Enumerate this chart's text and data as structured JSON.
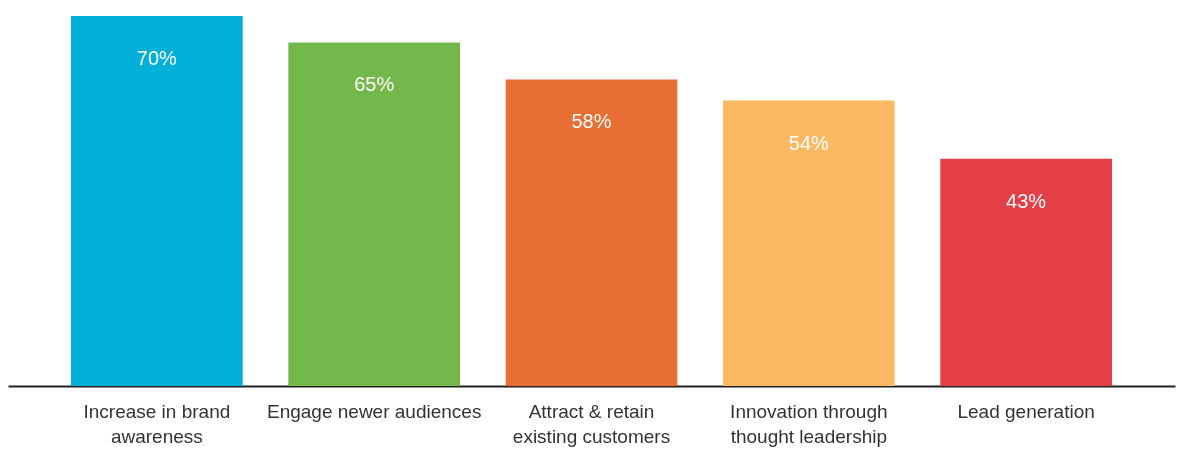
{
  "chart_data": {
    "type": "bar",
    "categories": [
      "Increase in brand awareness",
      "Engage newer audiences",
      "Attract & retain existing customers",
      "Innovation through thought leadership",
      "Lead generation"
    ],
    "values": [
      70,
      65,
      58,
      54,
      43
    ],
    "colors": [
      "#00b0d8",
      "#74b84b",
      "#e86e34",
      "#fbb863",
      "#e43f44"
    ],
    "value_labels": [
      "70%",
      "65%",
      "58%",
      "54%",
      "43%"
    ],
    "grid": false
  }
}
